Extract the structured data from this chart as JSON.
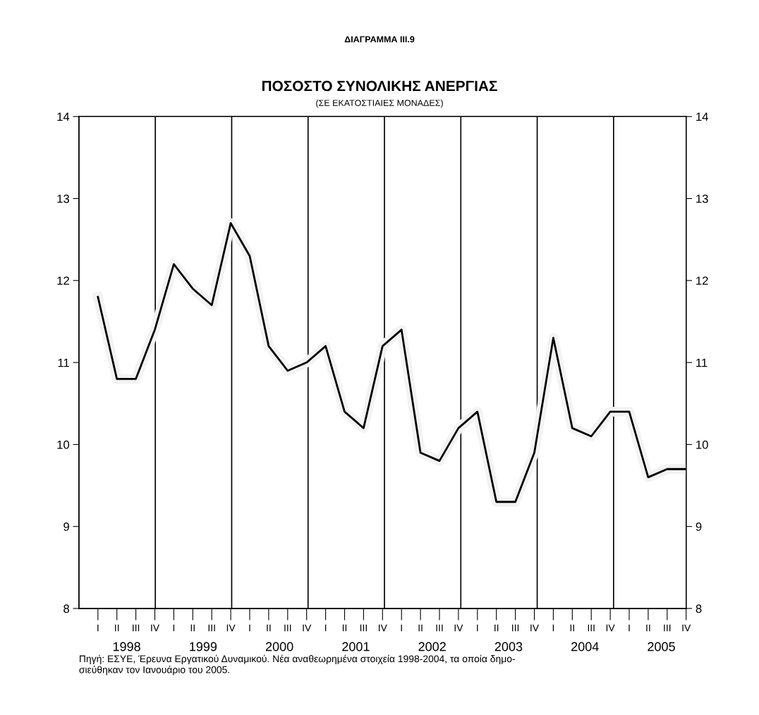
{
  "chart_data": {
    "type": "line",
    "title": "ΠΟΣΟΣΤΟ ΣΥΝΟΛΙΚΗΣ ΑΝΕΡΓΙΑΣ",
    "subtitle": "(ΣΕ ΕΚΑΤΟΣΤΙΑΙΕΣ ΜΟΝΑΔΕΣ)",
    "annotations": [
      "ΔΙΑΓΡΑΜΜΑ III.9",
      "Πηγή: ΕΣΥΕ, Έρευνα Εργατικού Δυναμικού. Νέα αναθεωρημένα στοιχεία 1998-2004, τα οποία δημο-\nσιεύθηκαν τον Ιανουάριο του 2005."
    ],
    "categories": [
      "I",
      "II",
      "III",
      "IV",
      "I",
      "II",
      "III",
      "IV",
      "I",
      "II",
      "III",
      "IV",
      "I",
      "II",
      "III",
      "IV",
      "I",
      "II",
      "III",
      "IV",
      "I",
      "II",
      "III",
      "IV",
      "I",
      "II",
      "III",
      "IV",
      "I",
      "II",
      "III",
      "IV"
    ],
    "series": [
      {
        "color": "#000000",
        "values": [
          11.8,
          10.8,
          10.8,
          11.4,
          12.2,
          11.9,
          11.7,
          12.7,
          12.3,
          11.2,
          10.9,
          11.0,
          11.2,
          10.4,
          10.2,
          11.2,
          11.4,
          9.9,
          9.8,
          10.2,
          10.4,
          9.3,
          9.3,
          9.9,
          11.3,
          10.2,
          10.1,
          10.4,
          10.4,
          9.6,
          9.7,
          9.7
        ]
      }
    ],
    "x2lim": [
      1997.375,
      2005.325
    ],
    "x2ticks": [
      1998,
      1999,
      2000,
      2001,
      2002,
      2003,
      2004,
      2005
    ],
    "ylim": [
      8,
      14
    ],
    "yticks": [
      8,
      9,
      10,
      11,
      12,
      13,
      14
    ],
    "y2lim": [
      8,
      14
    ],
    "y2ticks": [
      8,
      9,
      10,
      11,
      12,
      13,
      14
    ],
    "ref_lines": [
      {
        "axis": "x2",
        "value": 1998.375,
        "color": "#000000"
      },
      {
        "axis": "x2",
        "value": 1999.375,
        "color": "#000000"
      },
      {
        "axis": "x2",
        "value": 2000.375,
        "color": "#000000"
      },
      {
        "axis": "x2",
        "value": 2001.375,
        "color": "#000000"
      },
      {
        "axis": "x2",
        "value": 2002.375,
        "color": "#000000"
      },
      {
        "axis": "x2",
        "value": 2003.375,
        "color": "#000000"
      },
      {
        "axis": "x2",
        "value": 2004.375,
        "color": "#000000"
      }
    ],
    "grid": false,
    "marker": "none",
    "line_style": "solid"
  }
}
